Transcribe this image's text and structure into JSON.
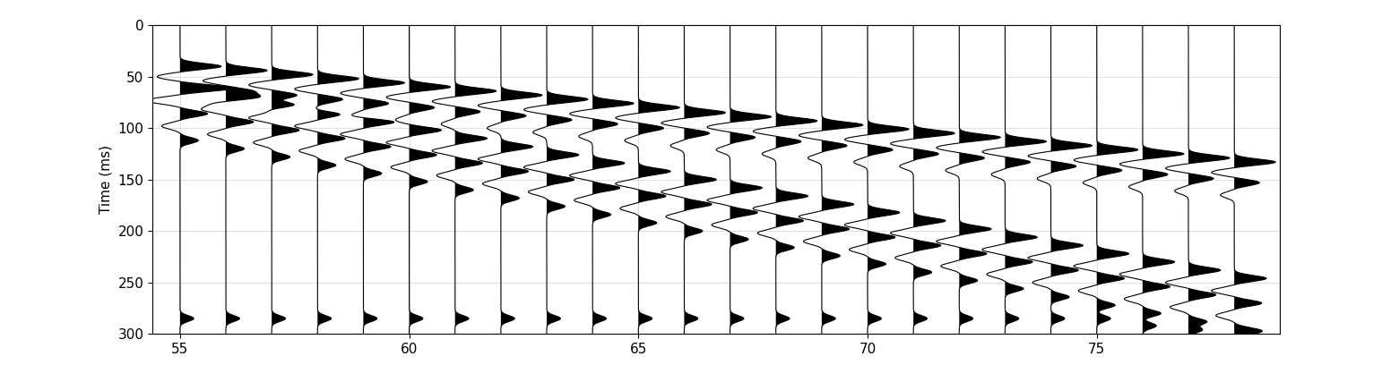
{
  "chart_data": {
    "type": "wiggle",
    "ylabel": "Time (ms)",
    "xlim": [
      54.4,
      79
    ],
    "xticks": [
      55,
      60,
      65,
      70,
      75
    ],
    "ylim": [
      300,
      0
    ],
    "yticks": [
      0,
      50,
      100,
      150,
      200,
      250,
      300
    ],
    "grid": true,
    "traces": [
      {
        "x": 55,
        "times": [
          40,
          50,
          60,
          72,
          62,
          74,
          86,
          98,
          112,
          285
        ],
        "amplitudes": [
          0.9,
          -0.5,
          0.55,
          -0.3,
          0.7,
          -0.5,
          0.6,
          -0.4,
          0.4,
          0.3
        ]
      },
      {
        "x": 56,
        "times": [
          44,
          54,
          64,
          76,
          70,
          82,
          94,
          106,
          120,
          285
        ],
        "amplitudes": [
          0.9,
          -0.5,
          0.55,
          -0.3,
          0.7,
          -0.5,
          0.6,
          -0.4,
          0.4,
          0.3
        ]
      },
      {
        "x": 57,
        "times": [
          48,
          58,
          68,
          80,
          78,
          90,
          102,
          114,
          128,
          285
        ],
        "amplitudes": [
          0.9,
          -0.5,
          0.55,
          -0.3,
          0.7,
          -0.5,
          0.6,
          -0.4,
          0.4,
          0.3
        ]
      },
      {
        "x": 58,
        "times": [
          52,
          62,
          72,
          84,
          86,
          98,
          110,
          122,
          136,
          285
        ],
        "amplitudes": [
          0.9,
          -0.5,
          0.55,
          -0.3,
          0.7,
          -0.5,
          0.6,
          -0.4,
          0.4,
          0.3
        ]
      },
      {
        "x": 59,
        "times": [
          56,
          66,
          76,
          88,
          94,
          106,
          118,
          130,
          144,
          285
        ],
        "amplitudes": [
          0.9,
          -0.5,
          0.55,
          -0.3,
          0.7,
          -0.5,
          0.6,
          -0.4,
          0.4,
          0.3
        ]
      },
      {
        "x": 60,
        "times": [
          60,
          70,
          80,
          92,
          102,
          114,
          126,
          138,
          152,
          285
        ],
        "amplitudes": [
          0.9,
          -0.5,
          0.55,
          -0.3,
          0.7,
          -0.5,
          0.6,
          -0.4,
          0.4,
          0.3
        ]
      },
      {
        "x": 61,
        "times": [
          64,
          74,
          84,
          96,
          110,
          122,
          134,
          146,
          160,
          285
        ],
        "amplitudes": [
          0.9,
          -0.5,
          0.55,
          -0.3,
          0.7,
          -0.5,
          0.6,
          -0.4,
          0.4,
          0.3
        ]
      },
      {
        "x": 62,
        "times": [
          68,
          78,
          88,
          100,
          118,
          130,
          142,
          154,
          168,
          285
        ],
        "amplitudes": [
          0.9,
          -0.5,
          0.55,
          -0.3,
          0.7,
          -0.5,
          0.6,
          -0.4,
          0.4,
          0.3
        ]
      },
      {
        "x": 63,
        "times": [
          72,
          82,
          92,
          104,
          126,
          138,
          150,
          162,
          176,
          285
        ],
        "amplitudes": [
          0.9,
          -0.5,
          0.55,
          -0.3,
          0.7,
          -0.5,
          0.6,
          -0.4,
          0.4,
          0.3
        ]
      },
      {
        "x": 64,
        "times": [
          76,
          86,
          96,
          108,
          134,
          146,
          158,
          170,
          184,
          285
        ],
        "amplitudes": [
          0.9,
          -0.5,
          0.55,
          -0.3,
          0.7,
          -0.5,
          0.6,
          -0.4,
          0.4,
          0.3
        ]
      },
      {
        "x": 65,
        "times": [
          80,
          90,
          100,
          112,
          142,
          154,
          166,
          178,
          192,
          285
        ],
        "amplitudes": [
          0.9,
          -0.5,
          0.55,
          -0.3,
          0.7,
          -0.5,
          0.6,
          -0.4,
          0.4,
          0.3
        ]
      },
      {
        "x": 66,
        "times": [
          85,
          95,
          105,
          117,
          150,
          162,
          174,
          186,
          200,
          285
        ],
        "amplitudes": [
          0.9,
          -0.5,
          0.55,
          -0.3,
          0.7,
          -0.5,
          0.6,
          -0.4,
          0.4,
          0.3
        ]
      },
      {
        "x": 67,
        "times": [
          89,
          99,
          109,
          121,
          158,
          170,
          182,
          194,
          208,
          285
        ],
        "amplitudes": [
          0.9,
          -0.5,
          0.55,
          -0.3,
          0.7,
          -0.5,
          0.6,
          -0.4,
          0.4,
          0.3
        ]
      },
      {
        "x": 68,
        "times": [
          93,
          103,
          113,
          125,
          166,
          178,
          190,
          202,
          216,
          285
        ],
        "amplitudes": [
          0.9,
          -0.5,
          0.55,
          -0.3,
          0.7,
          -0.5,
          0.6,
          -0.4,
          0.4,
          0.3
        ]
      },
      {
        "x": 69,
        "times": [
          97,
          107,
          117,
          129,
          174,
          186,
          198,
          210,
          224,
          285
        ],
        "amplitudes": [
          0.9,
          -0.5,
          0.55,
          -0.3,
          0.7,
          -0.5,
          0.6,
          -0.4,
          0.4,
          0.3
        ]
      },
      {
        "x": 70,
        "times": [
          101,
          111,
          121,
          133,
          182,
          194,
          206,
          218,
          232,
          285
        ],
        "amplitudes": [
          0.9,
          -0.5,
          0.55,
          -0.3,
          0.7,
          -0.5,
          0.6,
          -0.4,
          0.4,
          0.3
        ]
      },
      {
        "x": 71,
        "times": [
          105,
          115,
          125,
          137,
          190,
          202,
          214,
          226,
          240,
          285
        ],
        "amplitudes": [
          0.9,
          -0.5,
          0.55,
          -0.3,
          0.7,
          -0.5,
          0.6,
          -0.4,
          0.4,
          0.3
        ]
      },
      {
        "x": 72,
        "times": [
          109,
          119,
          129,
          141,
          198,
          210,
          222,
          234,
          248,
          285
        ],
        "amplitudes": [
          0.9,
          -0.5,
          0.55,
          -0.3,
          0.7,
          -0.5,
          0.6,
          -0.4,
          0.4,
          0.3
        ]
      },
      {
        "x": 73,
        "times": [
          113,
          123,
          133,
          145,
          206,
          218,
          230,
          242,
          256,
          285
        ],
        "amplitudes": [
          0.9,
          -0.5,
          0.55,
          -0.3,
          0.7,
          -0.5,
          0.6,
          -0.4,
          0.4,
          0.3
        ]
      },
      {
        "x": 74,
        "times": [
          117,
          127,
          137,
          149,
          214,
          226,
          238,
          250,
          264,
          285
        ],
        "amplitudes": [
          0.9,
          -0.5,
          0.55,
          -0.3,
          0.7,
          -0.5,
          0.6,
          -0.4,
          0.4,
          0.3
        ]
      },
      {
        "x": 75,
        "times": [
          121,
          131,
          141,
          153,
          222,
          234,
          246,
          258,
          272,
          285
        ],
        "amplitudes": [
          0.9,
          -0.5,
          0.55,
          -0.3,
          0.7,
          -0.5,
          0.6,
          -0.4,
          0.4,
          0.3
        ]
      },
      {
        "x": 76,
        "times": [
          125,
          135,
          145,
          157,
          230,
          242,
          254,
          266,
          280,
          292
        ],
        "amplitudes": [
          0.9,
          -0.5,
          0.55,
          -0.3,
          0.7,
          -0.5,
          0.6,
          -0.4,
          0.4,
          0.3
        ]
      },
      {
        "x": 77,
        "times": [
          129,
          139,
          149,
          161,
          238,
          250,
          262,
          274,
          288,
          296
        ],
        "amplitudes": [
          0.9,
          -0.5,
          0.55,
          -0.3,
          0.7,
          -0.5,
          0.6,
          -0.4,
          0.4,
          0.3
        ]
      },
      {
        "x": 78,
        "times": [
          133,
          143,
          153,
          165,
          246,
          258,
          270,
          282,
          296,
          299
        ],
        "amplitudes": [
          0.9,
          -0.5,
          0.55,
          -0.3,
          0.7,
          -0.5,
          0.6,
          -0.4,
          0.4,
          0.3
        ]
      }
    ]
  }
}
